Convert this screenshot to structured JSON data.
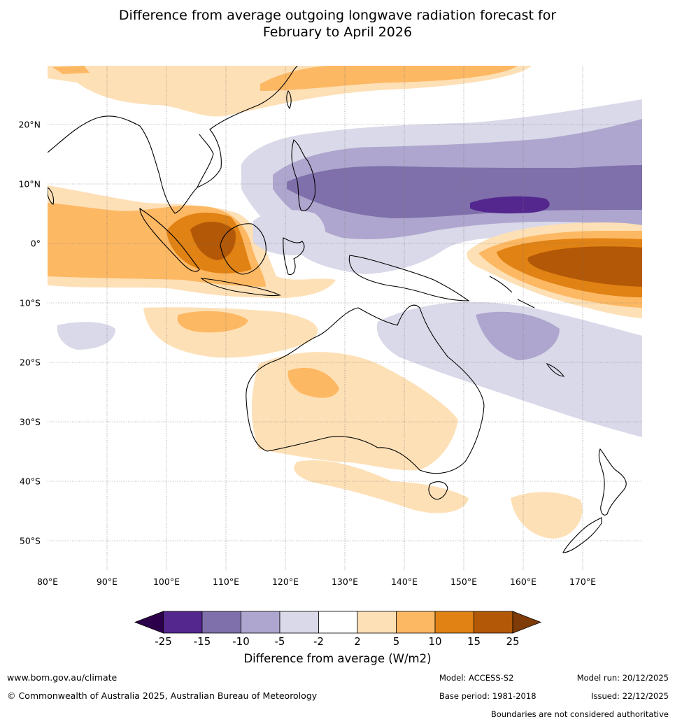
{
  "title_line1": "Difference from average outgoing longwave radiation forecast for",
  "title_line2": "February to April 2026",
  "map": {
    "lon_labels": [
      "80°E",
      "90°E",
      "100°E",
      "110°E",
      "120°E",
      "130°E",
      "140°E",
      "150°E",
      "160°E",
      "170°E"
    ],
    "lat_labels": [
      "20°N",
      "10°N",
      "0°",
      "10°S",
      "20°S",
      "30°S",
      "40°S",
      "50°S"
    ]
  },
  "colorbar": {
    "ticks": [
      "-25",
      "-15",
      "-10",
      "-5",
      "-2",
      "2",
      "5",
      "10",
      "15",
      "25"
    ],
    "colors": [
      "#54278f",
      "#7f70ab",
      "#aea6ce",
      "#d9d9e9",
      "#ffffff",
      "#fee0b6",
      "#fdb863",
      "#e08214",
      "#b35806"
    ],
    "extend_low_color": "#2d004b",
    "extend_high_color": "#7f3b08",
    "title": "Difference from average (W/m2)"
  },
  "footer": {
    "website": "www.bom.gov.au/climate",
    "copyright": "© Commonwealth of Australia 2025, Australian Bureau of Meteorology",
    "model": "Model: ACCESS-S2",
    "base_period": "Base period: 1981-2018",
    "model_run": "Model run: 20/12/2025",
    "issued": "Issued: 22/12/2025",
    "disclaimer": "Boundaries are not considered authoritative"
  }
}
